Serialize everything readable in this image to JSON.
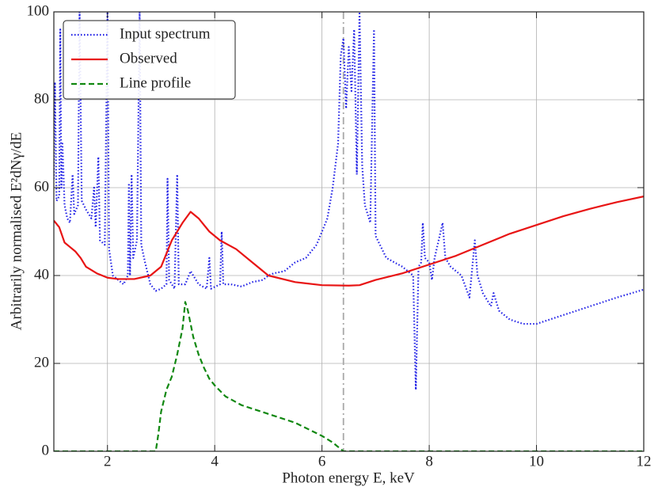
{
  "chart_data": {
    "type": "line",
    "xlabel": "Photon energy E, keV",
    "ylabel": "Arbitrarily normalised E²dNγ/dE",
    "xlim": [
      1,
      12
    ],
    "xticks": [
      2,
      4,
      6,
      8,
      10,
      12
    ],
    "ylim": [
      0,
      100
    ],
    "yticks": [
      0,
      20,
      40,
      60,
      80,
      100
    ],
    "grid": true,
    "legend": "upper left",
    "vline": 6.4,
    "vline_color": "#a8a8a8",
    "series": [
      {
        "name": "Input spectrum",
        "color": "#1f1fe6",
        "style": "dotted",
        "x": [
          1.0,
          1.02,
          1.05,
          1.1,
          1.12,
          1.14,
          1.16,
          1.2,
          1.25,
          1.3,
          1.35,
          1.38,
          1.45,
          1.48,
          1.52,
          1.6,
          1.7,
          1.75,
          1.78,
          1.83,
          1.86,
          1.95,
          2.0,
          2.03,
          2.1,
          2.2,
          2.3,
          2.38,
          2.4,
          2.42,
          2.45,
          2.48,
          2.55,
          2.6,
          2.63,
          2.7,
          2.8,
          2.9,
          3.0,
          3.1,
          3.12,
          3.15,
          3.25,
          3.3,
          3.33,
          3.45,
          3.55,
          3.7,
          3.85,
          3.9,
          3.93,
          4.1,
          4.13,
          4.16,
          4.3,
          4.5,
          4.7,
          4.9,
          5.0,
          5.1,
          5.3,
          5.5,
          5.7,
          5.9,
          6.1,
          6.2,
          6.3,
          6.35,
          6.4,
          6.45,
          6.5,
          6.55,
          6.6,
          6.65,
          6.7,
          6.75,
          6.8,
          6.9,
          6.97,
          7.0,
          7.2,
          7.5,
          7.7,
          7.75,
          7.8,
          7.85,
          7.88,
          7.92,
          8.0,
          8.05,
          8.1,
          8.25,
          8.3,
          8.4,
          8.5,
          8.6,
          8.75,
          8.85,
          8.9,
          9.0,
          9.15,
          9.2,
          9.3,
          9.5,
          9.75,
          10,
          10.5,
          11,
          11.5,
          12
        ],
        "values": [
          62,
          84,
          57,
          58,
          96,
          60,
          70,
          56,
          53,
          52,
          63,
          54,
          56,
          100,
          57,
          55,
          53,
          60,
          51,
          67,
          48,
          47,
          100,
          46,
          40,
          39,
          38,
          40,
          61,
          40,
          63,
          44,
          48,
          100,
          47,
          43,
          38,
          36.5,
          37,
          38,
          62,
          39,
          37,
          63,
          38,
          38,
          41,
          38,
          37,
          44,
          37,
          38,
          50,
          38,
          38,
          37.5,
          38.5,
          39,
          40,
          40.5,
          41,
          43,
          44,
          47,
          53,
          60,
          70,
          90,
          94,
          78,
          92,
          82,
          96,
          63,
          100,
          65,
          56,
          52,
          96,
          49,
          44,
          42,
          40,
          14,
          42,
          43,
          52,
          44,
          43,
          39,
          44,
          52,
          44,
          42,
          41,
          40,
          35,
          48,
          40,
          36,
          33,
          36,
          32,
          30,
          29,
          29,
          31,
          33,
          35,
          36.8
        ]
      },
      {
        "name": "Observed",
        "color": "#e81414",
        "style": "solid",
        "x": [
          1,
          1.1,
          1.2,
          1.3,
          1.4,
          1.5,
          1.6,
          1.8,
          2.0,
          2.2,
          2.5,
          2.8,
          3.0,
          3.2,
          3.4,
          3.55,
          3.7,
          3.9,
          4.1,
          4.4,
          4.7,
          5.0,
          5.5,
          6.0,
          6.5,
          6.7,
          7.0,
          7.5,
          8.0,
          8.5,
          9.0,
          9.5,
          10,
          10.5,
          11,
          11.5,
          12
        ],
        "values": [
          52.5,
          51,
          47.5,
          46.5,
          45.5,
          44,
          42,
          40.5,
          39.5,
          39.2,
          39.2,
          40,
          42,
          48,
          52,
          54.5,
          53,
          50,
          48,
          46,
          43,
          40,
          38.5,
          37.8,
          37.7,
          37.8,
          39,
          40.5,
          42.5,
          44.5,
          47,
          49.5,
          51.5,
          53.5,
          55.2,
          56.7,
          58
        ]
      },
      {
        "name": "Line profile",
        "color": "#118811",
        "style": "dashed",
        "x": [
          1,
          2.9,
          2.95,
          3.0,
          3.1,
          3.2,
          3.3,
          3.4,
          3.45,
          3.5,
          3.6,
          3.7,
          3.8,
          3.9,
          4.0,
          4.2,
          4.5,
          5.0,
          5.5,
          6.0,
          6.2,
          6.4,
          12
        ],
        "values": [
          0,
          0,
          4,
          9,
          14,
          17,
          22,
          28,
          34,
          32,
          26,
          22,
          19,
          16.5,
          15,
          12.5,
          10.5,
          8.5,
          6.5,
          3.5,
          2,
          0,
          0
        ]
      }
    ]
  }
}
